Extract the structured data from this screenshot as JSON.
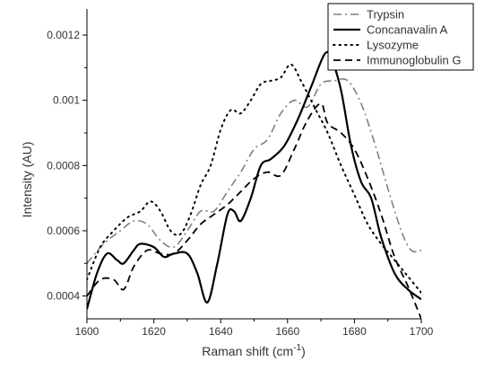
{
  "chart_data": {
    "type": "line",
    "title": "",
    "xlabel": "Raman shift (cm",
    "xlabel_superscript": "-1",
    "xlabel_suffix": ")",
    "ylabel": "Intensity (AU)",
    "xlim": [
      1600,
      1700
    ],
    "ylim": [
      0.00033,
      0.00128
    ],
    "x_ticks": [
      1600,
      1620,
      1640,
      1660,
      1680,
      1700
    ],
    "y_ticks": [
      {
        "value": 0.0004,
        "label": "0.0004"
      },
      {
        "value": 0.0006,
        "label": "0.0006"
      },
      {
        "value": 0.0008,
        "label": "0.0008"
      },
      {
        "value": 0.001,
        "label": "0.001"
      },
      {
        "value": 0.0012,
        "label": "0.0012"
      }
    ],
    "grid": false,
    "legend_position": "top-right",
    "series": [
      {
        "name": "Trypsin",
        "color": "#808080",
        "dash": "dashdot",
        "points": [
          [
            1600,
            0.0005
          ],
          [
            1605,
            0.00056
          ],
          [
            1610,
            0.0006
          ],
          [
            1614,
            0.00063
          ],
          [
            1618,
            0.00062
          ],
          [
            1622,
            0.00057
          ],
          [
            1626,
            0.00055
          ],
          [
            1630,
            0.0006
          ],
          [
            1634,
            0.00066
          ],
          [
            1638,
            0.00066
          ],
          [
            1642,
            0.00072
          ],
          [
            1646,
            0.00078
          ],
          [
            1650,
            0.00085
          ],
          [
            1654,
            0.00088
          ],
          [
            1658,
            0.00096
          ],
          [
            1662,
            0.001
          ],
          [
            1666,
            0.00098
          ],
          [
            1670,
            0.00105
          ],
          [
            1674,
            0.00106
          ],
          [
            1678,
            0.00106
          ],
          [
            1682,
            0.00099
          ],
          [
            1686,
            0.00087
          ],
          [
            1690,
            0.00073
          ],
          [
            1694,
            0.0006
          ],
          [
            1697,
            0.00054
          ],
          [
            1700,
            0.00054
          ]
        ]
      },
      {
        "name": "Concanavalin A",
        "color": "#000000",
        "dash": "solid",
        "points": [
          [
            1600,
            0.00036
          ],
          [
            1603,
            0.00047
          ],
          [
            1606,
            0.00053
          ],
          [
            1609,
            0.00051
          ],
          [
            1611,
            0.0005
          ],
          [
            1614,
            0.00054
          ],
          [
            1616,
            0.00056
          ],
          [
            1620,
            0.00055
          ],
          [
            1623,
            0.00052
          ],
          [
            1626,
            0.00053
          ],
          [
            1630,
            0.00053
          ],
          [
            1633,
            0.00047
          ],
          [
            1636,
            0.00038
          ],
          [
            1639,
            0.0005
          ],
          [
            1642,
            0.00065
          ],
          [
            1644,
            0.00066
          ],
          [
            1646,
            0.00063
          ],
          [
            1649,
            0.0007
          ],
          [
            1652,
            0.0008
          ],
          [
            1655,
            0.00082
          ],
          [
            1659,
            0.00086
          ],
          [
            1663,
            0.00094
          ],
          [
            1667,
            0.00104
          ],
          [
            1671,
            0.00114
          ],
          [
            1673,
            0.00113
          ],
          [
            1676,
            0.00103
          ],
          [
            1679,
            0.00086
          ],
          [
            1682,
            0.00075
          ],
          [
            1685,
            0.0007
          ],
          [
            1688,
            0.00058
          ],
          [
            1692,
            0.00047
          ],
          [
            1696,
            0.00042
          ],
          [
            1700,
            0.00039
          ]
        ]
      },
      {
        "name": "Lysozyme",
        "color": "#000000",
        "dash": "dotted",
        "points": [
          [
            1600,
            0.00045
          ],
          [
            1604,
            0.00055
          ],
          [
            1608,
            0.0006
          ],
          [
            1612,
            0.00064
          ],
          [
            1616,
            0.00066
          ],
          [
            1619,
            0.00069
          ],
          [
            1622,
            0.00066
          ],
          [
            1625,
            0.0006
          ],
          [
            1628,
            0.00059
          ],
          [
            1631,
            0.00065
          ],
          [
            1634,
            0.00074
          ],
          [
            1637,
            0.0008
          ],
          [
            1640,
            0.00091
          ],
          [
            1643,
            0.00097
          ],
          [
            1646,
            0.00096
          ],
          [
            1649,
            0.001
          ],
          [
            1652,
            0.00105
          ],
          [
            1655,
            0.00106
          ],
          [
            1658,
            0.00107
          ],
          [
            1661,
            0.00111
          ],
          [
            1664,
            0.00106
          ],
          [
            1668,
            0.00098
          ],
          [
            1672,
            0.0009
          ],
          [
            1676,
            0.0008
          ],
          [
            1680,
            0.00071
          ],
          [
            1684,
            0.00062
          ],
          [
            1688,
            0.00056
          ],
          [
            1692,
            0.00051
          ],
          [
            1696,
            0.00046
          ],
          [
            1700,
            0.00041
          ]
        ]
      },
      {
        "name": "Immunoglobulin G",
        "color": "#000000",
        "dash": "dashed",
        "points": [
          [
            1600,
            0.0004
          ],
          [
            1604,
            0.00045
          ],
          [
            1608,
            0.00045
          ],
          [
            1611,
            0.00042
          ],
          [
            1614,
            0.00049
          ],
          [
            1618,
            0.00054
          ],
          [
            1622,
            0.00053
          ],
          [
            1626,
            0.00053
          ],
          [
            1630,
            0.00057
          ],
          [
            1634,
            0.00062
          ],
          [
            1638,
            0.00065
          ],
          [
            1642,
            0.00068
          ],
          [
            1646,
            0.00072
          ],
          [
            1650,
            0.00076
          ],
          [
            1654,
            0.00078
          ],
          [
            1658,
            0.00077
          ],
          [
            1662,
            0.00085
          ],
          [
            1666,
            0.00094
          ],
          [
            1670,
            0.00099
          ],
          [
            1672,
            0.00093
          ],
          [
            1676,
            0.0009
          ],
          [
            1680,
            0.00085
          ],
          [
            1684,
            0.00076
          ],
          [
            1688,
            0.00065
          ],
          [
            1692,
            0.00052
          ],
          [
            1696,
            0.00043
          ],
          [
            1700,
            0.00033
          ]
        ]
      }
    ]
  }
}
